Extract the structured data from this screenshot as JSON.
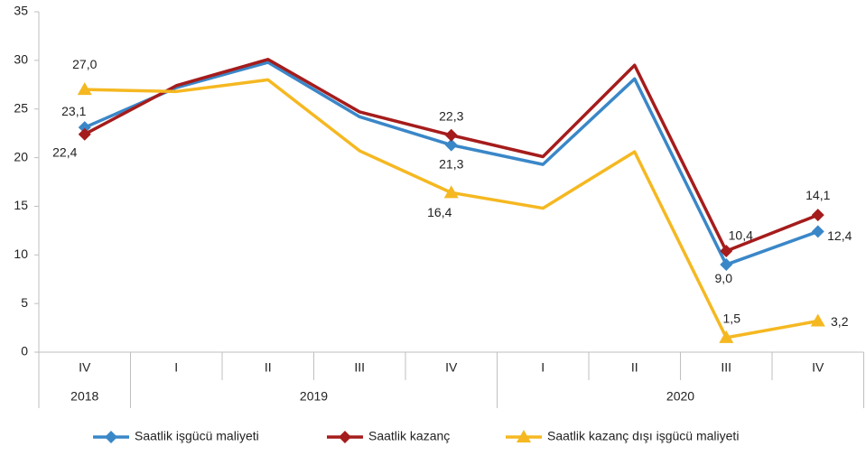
{
  "chart_data": {
    "type": "line",
    "categories": [
      "IV",
      "I",
      "II",
      "III",
      "IV",
      "I",
      "II",
      "III",
      "IV"
    ],
    "groups": [
      {
        "name": "2018",
        "count": 1
      },
      {
        "name": "2019",
        "count": 4
      },
      {
        "name": "2020",
        "count": 4
      }
    ],
    "series": [
      {
        "name": "Saatlik işgücü maliyeti",
        "color": "#3a87c8",
        "marker": "diamond",
        "values": [
          23.1,
          27.2,
          29.8,
          24.2,
          21.3,
          19.3,
          28.1,
          9.0,
          12.4
        ],
        "value_labels": [
          "23,1",
          null,
          null,
          null,
          "21,3",
          null,
          null,
          "9,0",
          "12,4"
        ]
      },
      {
        "name": "Saatlik kazanç",
        "color": "#a51c1c",
        "marker": "diamond",
        "values": [
          22.4,
          27.4,
          30.1,
          24.7,
          22.3,
          20.1,
          29.5,
          10.4,
          14.1
        ],
        "value_labels": [
          "22,4",
          null,
          null,
          null,
          "22,3",
          null,
          null,
          "10,4",
          "14,1"
        ]
      },
      {
        "name": "Saatlik kazanç dışı işgücü maliyeti",
        "color": "#f5b821",
        "marker": "triangle",
        "values": [
          27.0,
          26.8,
          28.0,
          20.7,
          16.4,
          14.8,
          20.6,
          1.5,
          3.2
        ],
        "value_labels": [
          "27,0",
          null,
          null,
          null,
          "16,4",
          null,
          null,
          "1,5",
          "3,2"
        ]
      }
    ],
    "ylim": [
      0,
      35
    ],
    "yticks": [
      0,
      5,
      10,
      15,
      20,
      25,
      30,
      35
    ],
    "grid": false,
    "legend": "bottom"
  }
}
